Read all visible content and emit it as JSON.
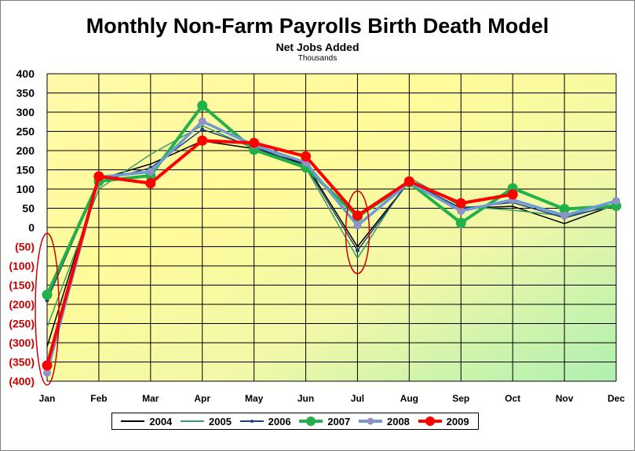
{
  "chart_data": {
    "type": "line",
    "title": "Monthly Non-Farm Payrolls Birth Death Model",
    "subtitle": "Net Jobs Added",
    "units": "Thousands",
    "categories": [
      "Jan",
      "Feb",
      "Mar",
      "Apr",
      "May",
      "Jun",
      "Jul",
      "Aug",
      "Sep",
      "Oct",
      "Nov",
      "Dec"
    ],
    "ylim": [
      -400,
      400
    ],
    "yticks": [
      400,
      350,
      300,
      250,
      200,
      150,
      100,
      50,
      0,
      -50,
      -100,
      -150,
      -200,
      -250,
      -300,
      -350,
      -400
    ],
    "ytick_labels": [
      "400",
      "350",
      "300",
      "250",
      "200",
      "150",
      "100",
      "50",
      "0",
      "(50)",
      "(100)",
      "(150)",
      "(200)",
      "(250)",
      "(300)",
      "(350)",
      "(400)"
    ],
    "negative_tick_color": "#cc0000",
    "grid": true,
    "legend_position": "bottom",
    "series": [
      {
        "name": "2004",
        "color": "#000000",
        "marker": "none",
        "values": [
          -310,
          125,
          165,
          225,
          205,
          165,
          -50,
          120,
          50,
          55,
          10,
          60
        ]
      },
      {
        "name": "2005",
        "color": "#3a9a6e",
        "marker": "none",
        "values": [
          -260,
          100,
          190,
          265,
          205,
          155,
          -80,
          130,
          55,
          45,
          30,
          55
        ]
      },
      {
        "name": "2006",
        "color": "#1f3f7a",
        "marker": "small",
        "values": [
          -190,
          120,
          155,
          255,
          210,
          160,
          -60,
          120,
          50,
          65,
          25,
          60
        ]
      },
      {
        "name": "2007",
        "color": "#22b04a",
        "marker": "large",
        "values": [
          -175,
          120,
          135,
          317,
          202,
          156,
          28,
          117,
          12,
          102,
          48,
          56
        ]
      },
      {
        "name": "2008",
        "color": "#6f9ad8",
        "marker": "medium",
        "values": [
          -378,
          131,
          145,
          276,
          214,
          169,
          5,
          117,
          43,
          72,
          31,
          69
        ]
      },
      {
        "name": "2009",
        "color": "#ff0000",
        "marker": "large",
        "values": [
          -359,
          133,
          115,
          226,
          220,
          185,
          31,
          120,
          63,
          86,
          null,
          null
        ]
      }
    ],
    "annotations": [
      {
        "type": "ellipse",
        "month": "Jan",
        "range": [
          -410,
          -15
        ],
        "color": "#cc0000"
      },
      {
        "type": "ellipse",
        "month": "Jul",
        "range": [
          -120,
          95
        ],
        "color": "#cc0000"
      }
    ]
  }
}
